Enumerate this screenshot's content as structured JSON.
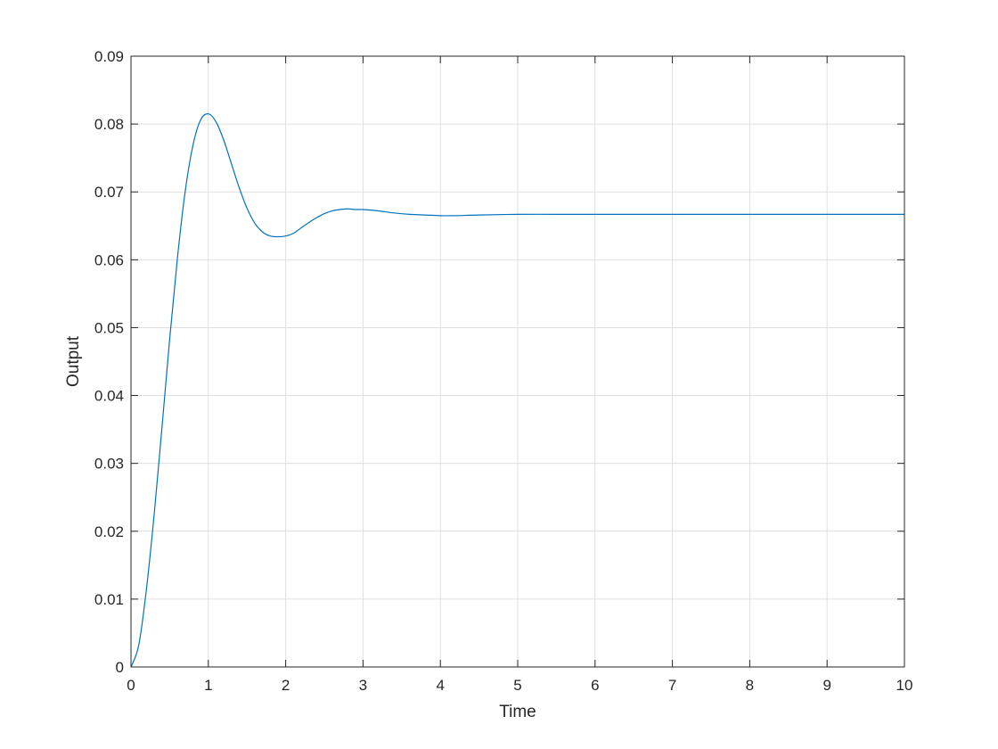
{
  "chart_data": {
    "type": "line",
    "title": "",
    "xlabel": "Time",
    "ylabel": "Output",
    "xlim": [
      0,
      10
    ],
    "ylim": [
      0,
      0.09
    ],
    "xticks": [
      0,
      1,
      2,
      3,
      4,
      5,
      6,
      7,
      8,
      9,
      10
    ],
    "yticks": [
      0,
      0.01,
      0.02,
      0.03,
      0.04,
      0.05,
      0.06,
      0.07,
      0.08,
      0.09
    ],
    "xtick_labels": [
      "0",
      "1",
      "2",
      "3",
      "4",
      "5",
      "6",
      "7",
      "8",
      "9",
      "10"
    ],
    "ytick_labels": [
      "0",
      "0.01",
      "0.02",
      "0.03",
      "0.04",
      "0.05",
      "0.06",
      "0.07",
      "0.08",
      "0.09"
    ],
    "grid": true,
    "legend": false,
    "series": [
      {
        "color": "#0072BD",
        "x": [
          0,
          0.1,
          0.2,
          0.3,
          0.4,
          0.5,
          0.6,
          0.7,
          0.8,
          0.9,
          1.0,
          1.1,
          1.2,
          1.3,
          1.4,
          1.5,
          1.6,
          1.7,
          1.8,
          1.9,
          2.0,
          2.1,
          2.2,
          2.3,
          2.4,
          2.5,
          2.6,
          2.7,
          2.8,
          2.9,
          3.0,
          3.2,
          3.4,
          3.6,
          3.8,
          4.0,
          4.2,
          4.5,
          5.0,
          5.5,
          6.0,
          7.0,
          8.0,
          9.0,
          10.0
        ],
        "y": [
          0,
          0.0032,
          0.0115,
          0.0225,
          0.0352,
          0.0483,
          0.0602,
          0.07,
          0.0768,
          0.0806,
          0.0815,
          0.0803,
          0.0776,
          0.0741,
          0.0706,
          0.0676,
          0.0654,
          0.0641,
          0.0635,
          0.0634,
          0.0635,
          0.0639,
          0.0647,
          0.0655,
          0.0662,
          0.0668,
          0.0672,
          0.0674,
          0.0675,
          0.0674,
          0.0674,
          0.0672,
          0.0669,
          0.0667,
          0.0666,
          0.0665,
          0.0665,
          0.0666,
          0.0667,
          0.0667,
          0.0667,
          0.0667,
          0.0667,
          0.0667,
          0.0667
        ]
      }
    ]
  }
}
